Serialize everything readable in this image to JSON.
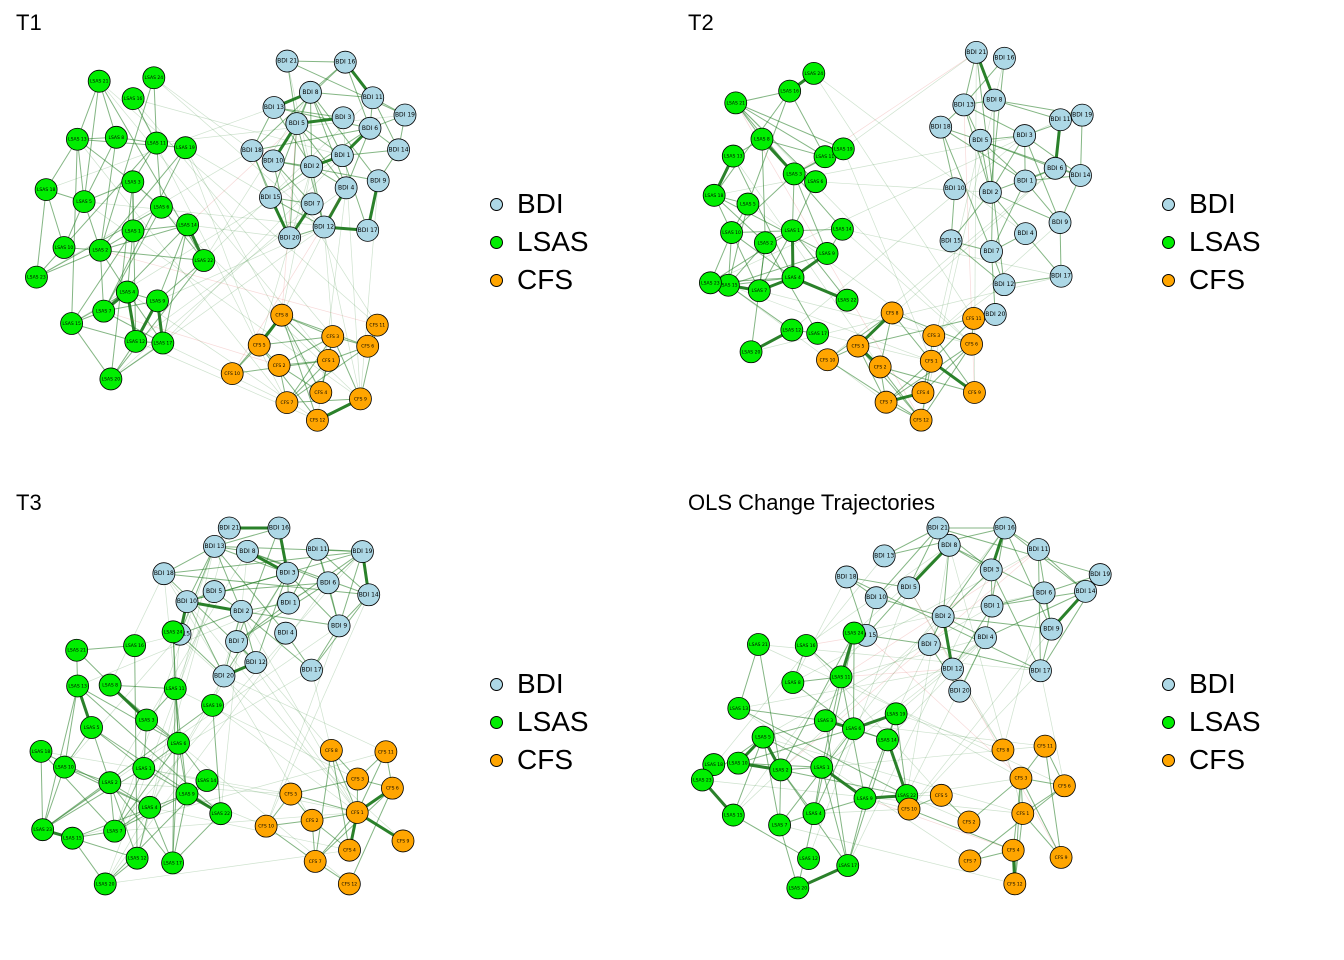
{
  "colors": {
    "BDI": "#add8e6",
    "LSAS": "#00ee00",
    "CFS": "#ffa500",
    "edge_pos": "#1f7a1f",
    "edge_neg": "#d9534f"
  },
  "legend": [
    {
      "key": "BDI",
      "label": "BDI"
    },
    {
      "key": "LSAS",
      "label": "LSAS"
    },
    {
      "key": "CFS",
      "label": "CFS"
    }
  ],
  "panels": [
    {
      "title": "T1"
    },
    {
      "title": "T2"
    },
    {
      "title": "T3"
    },
    {
      "title": "OLS Change Trajectories"
    }
  ],
  "groups": {
    "BDI": [
      "BDI_1",
      "BDI_2",
      "BDI_3",
      "BDI_4",
      "BDI_5",
      "BDI_6",
      "BDI_7",
      "BDI_8",
      "BDI_9",
      "BDI_10",
      "BDI_11",
      "BDI_12",
      "BDI_13",
      "BDI_14",
      "BDI_15",
      "BDI_16",
      "BDI_17",
      "BDI_18",
      "BDI_19",
      "BDI_20",
      "BDI_21"
    ],
    "LSAS": [
      "LSAS_1",
      "LSAS_2",
      "LSAS_3",
      "LSAS_4",
      "LSAS_5",
      "LSAS_6",
      "LSAS_7",
      "LSAS_8",
      "LSAS_9",
      "LSAS_10",
      "LSAS_11",
      "LSAS_12",
      "LSAS_13",
      "LSAS_14",
      "LSAS_15",
      "LSAS_16",
      "LSAS_17",
      "LSAS_18",
      "LSAS_19",
      "LSAS_20",
      "LSAS_21",
      "LSAS_22",
      "LSAS_23",
      "LSAS_24"
    ],
    "CFS": [
      "CFS_1",
      "CFS_2",
      "CFS_3",
      "CFS_4",
      "CFS_5",
      "CFS_6",
      "CFS_7",
      "CFS_8",
      "CFS_9",
      "CFS_10",
      "CFS_11",
      "CFS_12"
    ]
  }
}
